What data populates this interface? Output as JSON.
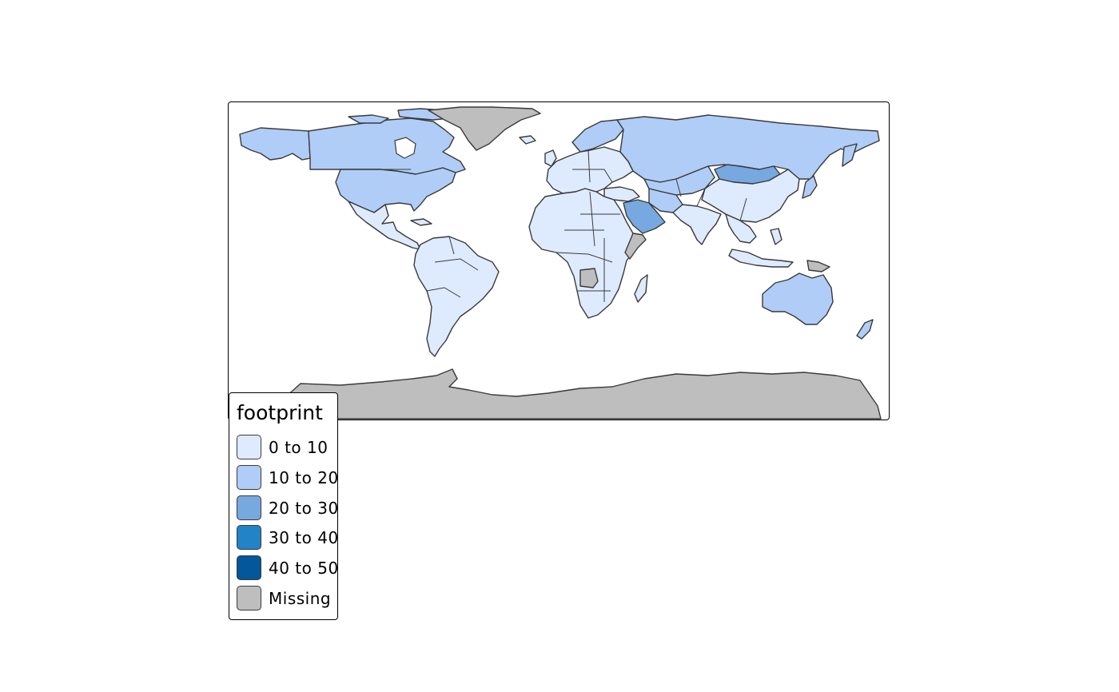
{
  "legend": {
    "title": "footprint",
    "items": [
      {
        "label": "0 to 10",
        "color": "#deebff"
      },
      {
        "label": "10 to 20",
        "color": "#b0cdf7"
      },
      {
        "label": "20 to 30",
        "color": "#78a8e0"
      },
      {
        "label": "30 to 40",
        "color": "#2283c6"
      },
      {
        "label": "40 to 50",
        "color": "#03579a"
      },
      {
        "label": "Missing",
        "color": "#bebebe"
      }
    ]
  },
  "map": {
    "regions": [
      {
        "name": "canada",
        "class": "10 to 20"
      },
      {
        "name": "united-states",
        "class": "10 to 20"
      },
      {
        "name": "alaska",
        "class": "10 to 20"
      },
      {
        "name": "greenland",
        "class": "Missing"
      },
      {
        "name": "mexico-central-america",
        "class": "0 to 10"
      },
      {
        "name": "south-america",
        "class": "0 to 10"
      },
      {
        "name": "europe",
        "class": "0 to 10"
      },
      {
        "name": "scandinavia",
        "class": "10 to 20"
      },
      {
        "name": "russia",
        "class": "10 to 20"
      },
      {
        "name": "kazakhstan",
        "class": "10 to 20"
      },
      {
        "name": "mongolia",
        "class": "20 to 30"
      },
      {
        "name": "china",
        "class": "0 to 10"
      },
      {
        "name": "india",
        "class": "0 to 10"
      },
      {
        "name": "iran",
        "class": "10 to 20"
      },
      {
        "name": "saudi-arabia",
        "class": "20 to 30"
      },
      {
        "name": "africa",
        "class": "0 to 10"
      },
      {
        "name": "somalia",
        "class": "Missing"
      },
      {
        "name": "angola",
        "class": "Missing"
      },
      {
        "name": "southeast-asia",
        "class": "0 to 10"
      },
      {
        "name": "japan",
        "class": "10 to 20"
      },
      {
        "name": "australia",
        "class": "10 to 20"
      },
      {
        "name": "new-zealand",
        "class": "10 to 20"
      },
      {
        "name": "antarctica",
        "class": "Missing"
      }
    ]
  }
}
